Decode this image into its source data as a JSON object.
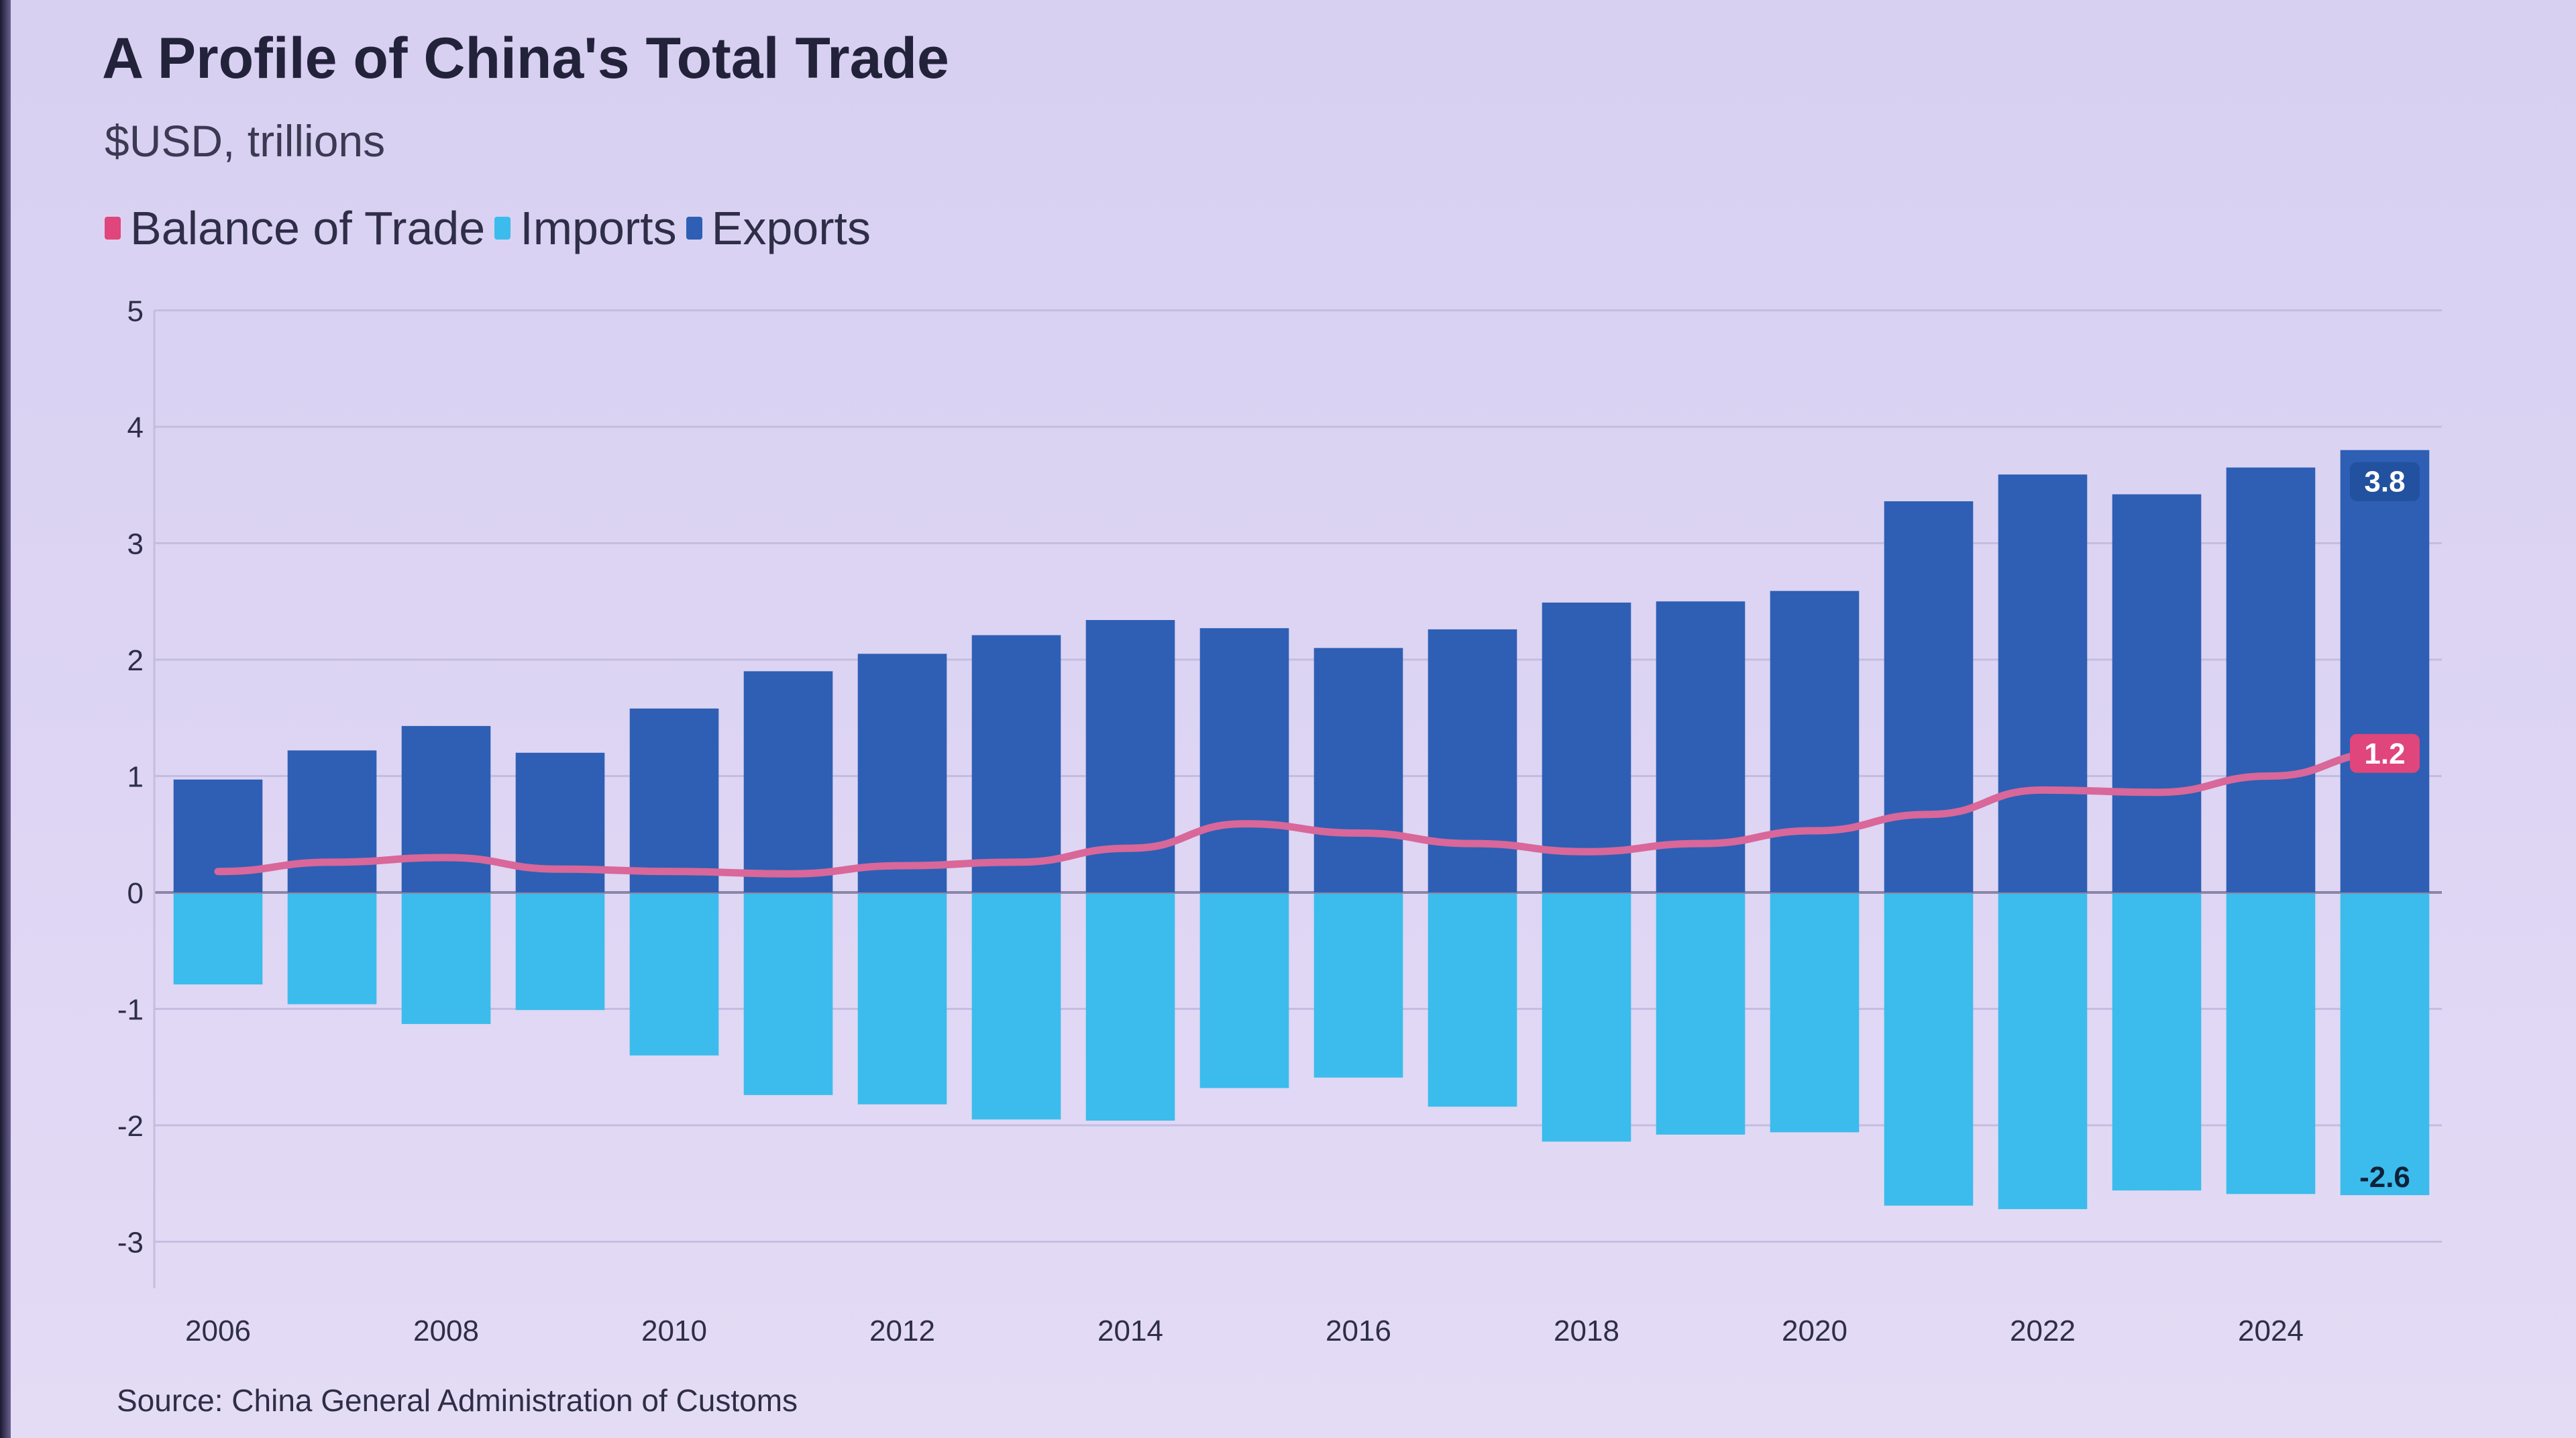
{
  "header": {
    "title": "A Profile of China's Total Trade",
    "subtitle": "$USD, trillions"
  },
  "legend": [
    {
      "label": "Balance of Trade",
      "color": "#e0457b"
    },
    {
      "label": "Imports",
      "color": "#3bbcec"
    },
    {
      "label": "Exports",
      "color": "#2e5fb4"
    }
  ],
  "footer": {
    "source": "Source: China General Administration of Customs"
  },
  "colors": {
    "exports": "#2e5fb4",
    "imports": "#3bbcec",
    "balance": "#d9679a",
    "balance_label_bg": "#e0457b",
    "gridline": "#c4bde0",
    "axis": "#8a86a8"
  },
  "chart_data": {
    "type": "bar",
    "categories": [
      "2006",
      "2007",
      "2008",
      "2009",
      "2010",
      "2011",
      "2012",
      "2013",
      "2014",
      "2015",
      "2016",
      "2017",
      "2018",
      "2019",
      "2020",
      "2021",
      "2022",
      "2023",
      "2024",
      "2025"
    ],
    "x_tick_labels": [
      "2006",
      "2008",
      "2010",
      "2012",
      "2014",
      "2016",
      "2018",
      "2020",
      "2022",
      "2024"
    ],
    "y_tick_labels": [
      "5",
      "4",
      "3",
      "2",
      "1",
      "0",
      "-1",
      "-2",
      "-3"
    ],
    "ylim": [
      -3.4,
      5
    ],
    "grid": true,
    "legend_position": "top-left",
    "series": [
      {
        "name": "Exports",
        "type": "bar",
        "values": [
          0.97,
          1.22,
          1.43,
          1.2,
          1.58,
          1.9,
          2.05,
          2.21,
          2.34,
          2.27,
          2.1,
          2.26,
          2.49,
          2.5,
          2.59,
          3.36,
          3.59,
          3.42,
          3.65,
          3.8
        ]
      },
      {
        "name": "Imports",
        "type": "bar",
        "values": [
          -0.79,
          -0.96,
          -1.13,
          -1.01,
          -1.4,
          -1.74,
          -1.82,
          -1.95,
          -1.96,
          -1.68,
          -1.59,
          -1.84,
          -2.14,
          -2.08,
          -2.06,
          -2.69,
          -2.72,
          -2.56,
          -2.59,
          -2.6
        ]
      },
      {
        "name": "Balance of Trade",
        "type": "line",
        "values": [
          0.18,
          0.26,
          0.3,
          0.2,
          0.18,
          0.16,
          0.23,
          0.26,
          0.38,
          0.59,
          0.51,
          0.42,
          0.35,
          0.42,
          0.53,
          0.67,
          0.88,
          0.86,
          1.0,
          1.2
        ]
      }
    ],
    "annotations": [
      {
        "series": "Exports",
        "index": 19,
        "text": "3.8"
      },
      {
        "series": "Balance of Trade",
        "index": 19,
        "text": "1.2"
      },
      {
        "series": "Imports",
        "index": 19,
        "text": "-2.6"
      }
    ]
  }
}
